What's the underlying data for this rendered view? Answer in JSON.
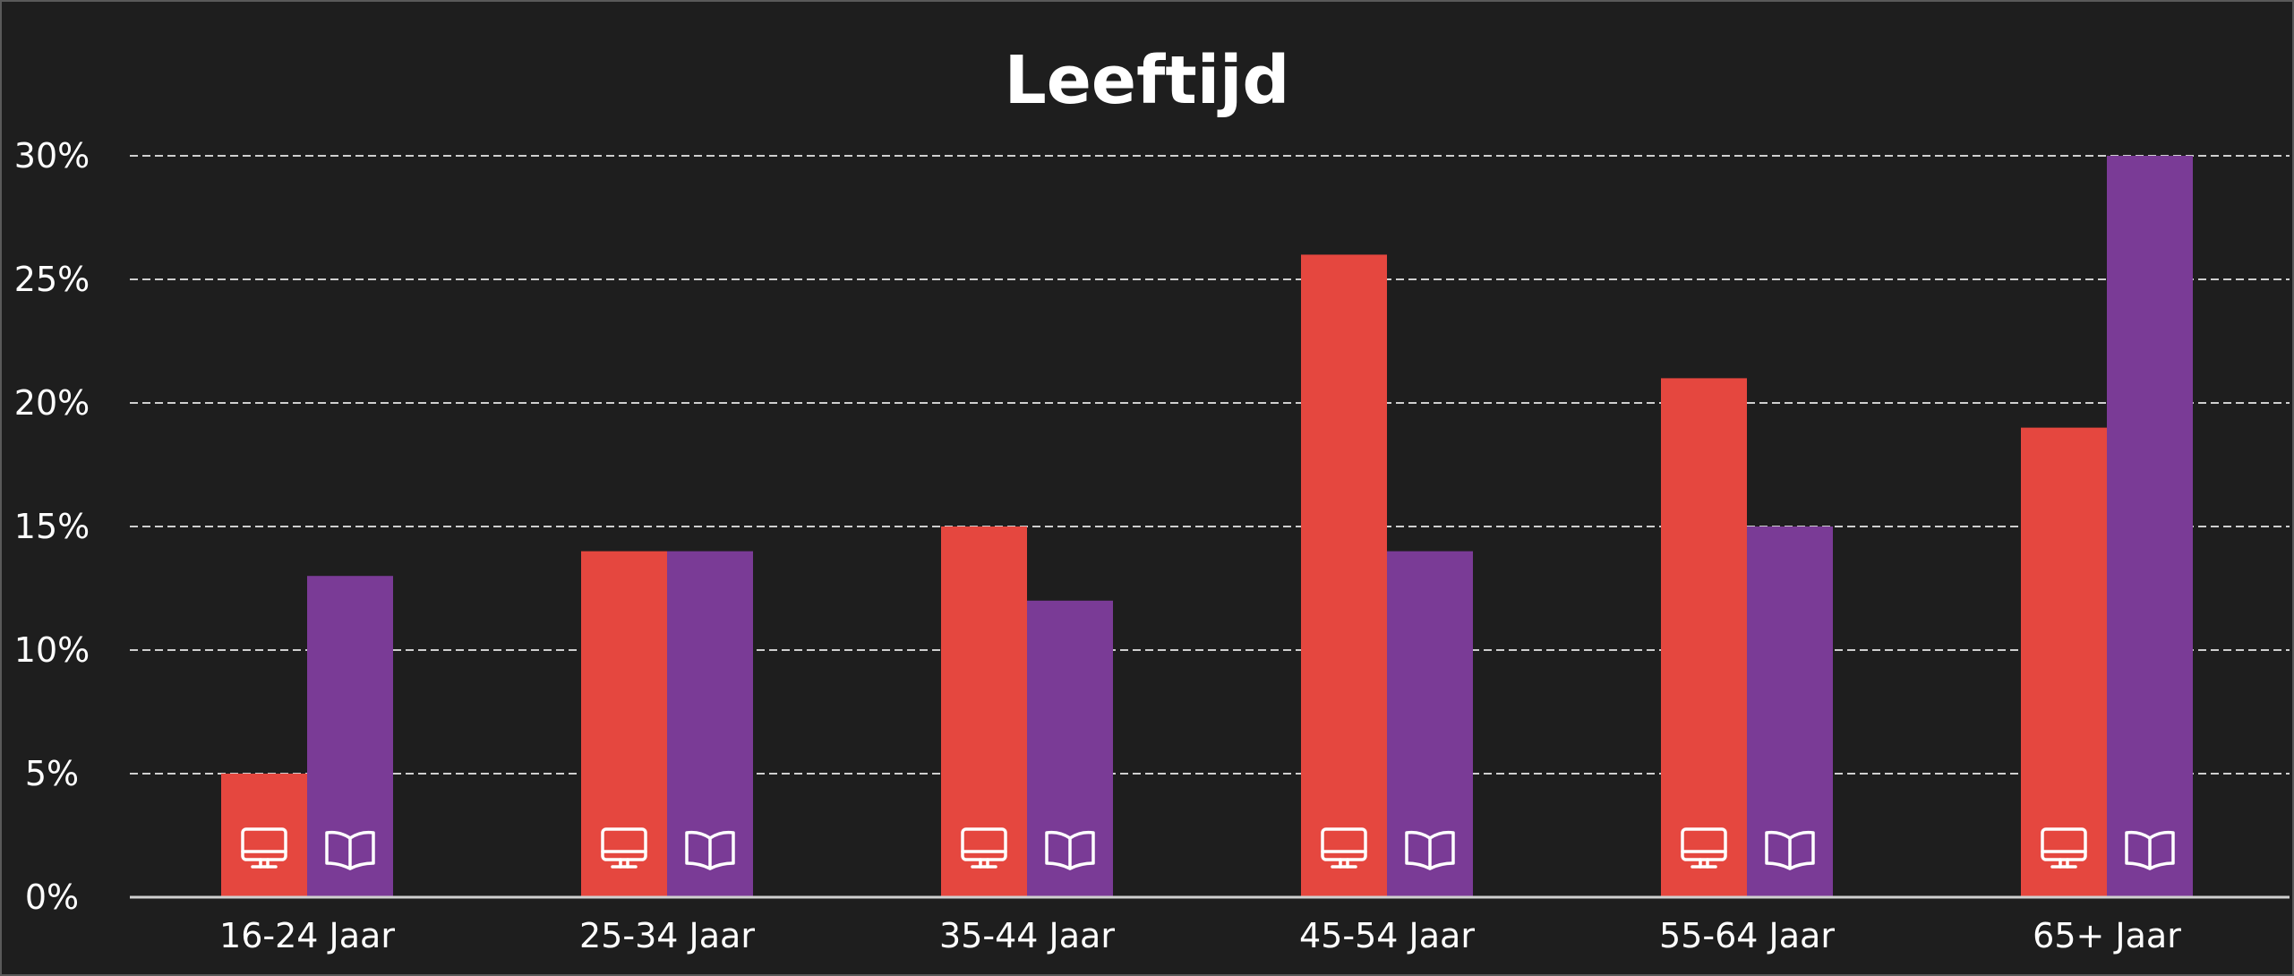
{
  "chart_data": {
    "type": "bar",
    "title": "Leeftijd",
    "categories": [
      "16-24 Jaar",
      "25-34 Jaar",
      "35-44 Jaar",
      "45-54 Jaar",
      "55-64 Jaar",
      "65+ Jaar"
    ],
    "series": [
      {
        "icon": "monitor-icon",
        "color": "#E5473F",
        "values": [
          5,
          14,
          15,
          26,
          21,
          19
        ]
      },
      {
        "icon": "book-icon",
        "color": "#7A3B96",
        "values": [
          13,
          14,
          12,
          14,
          15,
          30
        ]
      }
    ],
    "ylim": [
      0,
      30
    ],
    "yticks": [
      0,
      5,
      10,
      15,
      20,
      25,
      30
    ],
    "ytick_labels": [
      "0%",
      "5%",
      "10%",
      "15%",
      "20%",
      "25%",
      "30%"
    ],
    "grid": true,
    "grid_style": "dashed",
    "legend": "none",
    "background": "#1E1E1E"
  }
}
